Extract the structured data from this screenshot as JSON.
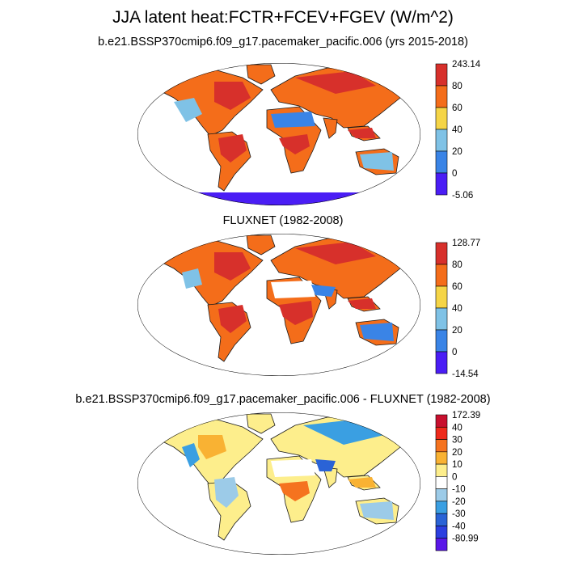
{
  "title": "JJA latent heat:FCTR+FCEV+FGEV (W/m^2)",
  "chart_data": [
    {
      "type": "heatmap",
      "title": "b.e21.BSSP370cmip6.f09_g17.pacemaker_pacific.006 (yrs 2015-2018)",
      "projection": "Robinson",
      "colorbar": {
        "labels": [
          "243.14",
          "80",
          "60",
          "40",
          "20",
          "0",
          "-5.06"
        ],
        "colors": [
          "#d7302b",
          "#f46d1a",
          "#f5d547",
          "#7fc2e6",
          "#3a84e6",
          "#4a1df5"
        ]
      },
      "regions": [
        {
          "name": "amazon",
          "level": 80
        },
        {
          "name": "central-africa",
          "level": 80
        },
        {
          "name": "eastern-north-america",
          "level": 80
        },
        {
          "name": "europe",
          "level": 60
        },
        {
          "name": "siberia",
          "level": 60
        },
        {
          "name": "southeast-asia",
          "level": 80
        },
        {
          "name": "sahara",
          "level": 0
        },
        {
          "name": "australia",
          "level": 20
        },
        {
          "name": "antarctica",
          "level": -5.06
        }
      ]
    },
    {
      "type": "heatmap",
      "title": "FLUXNET (1982-2008)",
      "projection": "Robinson",
      "colorbar": {
        "labels": [
          "128.77",
          "80",
          "60",
          "40",
          "20",
          "0",
          "-14.54"
        ],
        "colors": [
          "#d7302b",
          "#f46d1a",
          "#f5d547",
          "#7fc2e6",
          "#3a84e6",
          "#4a1df5"
        ]
      },
      "regions": [
        {
          "name": "amazon",
          "level": 80
        },
        {
          "name": "central-africa",
          "level": 80
        },
        {
          "name": "eastern-north-america",
          "level": 80
        },
        {
          "name": "europe",
          "level": 60
        },
        {
          "name": "siberia",
          "level": 60
        },
        {
          "name": "southeast-asia",
          "level": 80
        },
        {
          "name": "sahara",
          "level": 0
        },
        {
          "name": "australia",
          "level": 20
        }
      ]
    },
    {
      "type": "heatmap",
      "title": "b.e21.BSSP370cmip6.f09_g17.pacemaker_pacific.006 - FLUXNET (1982-2008)",
      "projection": "Robinson",
      "colorbar": {
        "labels": [
          "172.39",
          "40",
          "30",
          "20",
          "10",
          "0",
          "-10",
          "-20",
          "-30",
          "-40",
          "-80.99"
        ],
        "colors": [
          "#c8102e",
          "#ee2a1b",
          "#f5731f",
          "#f9b233",
          "#fdee8c",
          "#ffffff",
          "#9ccbe8",
          "#3a9fe2",
          "#2a63d6",
          "#2c3fe0",
          "#5a17e8"
        ]
      },
      "regions": [
        {
          "name": "amazon",
          "level": -10
        },
        {
          "name": "central-africa",
          "level": 10
        },
        {
          "name": "eastern-north-america",
          "level": 10
        },
        {
          "name": "europe",
          "level": -20
        },
        {
          "name": "siberia",
          "level": -20
        },
        {
          "name": "southeast-asia",
          "level": 10
        },
        {
          "name": "sahara",
          "level": 0
        },
        {
          "name": "australia",
          "level": -10
        }
      ]
    }
  ]
}
